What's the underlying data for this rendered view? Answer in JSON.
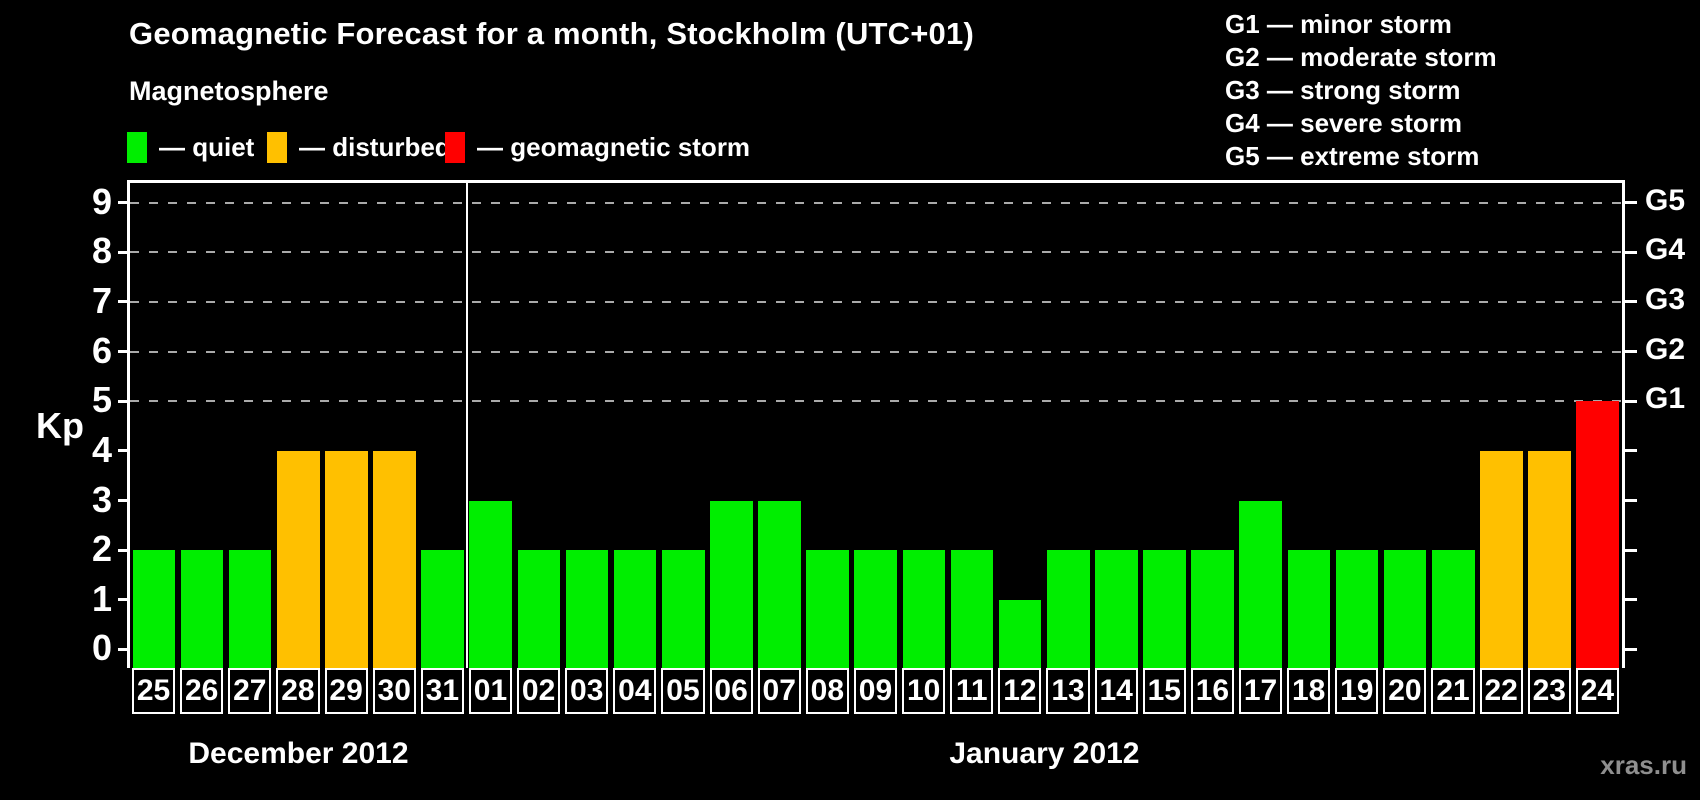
{
  "header": {
    "title": "Geomagnetic Forecast for a month, Stockholm (UTC+01)"
  },
  "legend": {
    "title": "Magnetosphere",
    "items": [
      {
        "key": "quiet",
        "label": "— quiet"
      },
      {
        "key": "disturbed",
        "label": "— disturbed"
      },
      {
        "key": "storm",
        "label": "— geomagnetic storm"
      }
    ]
  },
  "g_legend": {
    "items": [
      "G1 — minor storm",
      "G2 — moderate storm",
      "G3 — strong storm",
      "G4 — severe storm",
      "G5 — extreme storm"
    ]
  },
  "axes": {
    "y_label": "Kp"
  },
  "footer": {
    "watermark": "xras.ru"
  },
  "colors": {
    "quiet": "#00ee00",
    "disturbed": "#ffc000",
    "storm": "#ff0000",
    "background": "#000000",
    "grid": "#aaaaaa",
    "axis": "#ffffff",
    "watermark": "#8f8f8f"
  },
  "chart_data": {
    "type": "bar",
    "title": "Geomagnetic Forecast for a month, Stockholm (UTC+01)",
    "xlabel": "",
    "ylabel": "Kp",
    "ylim": [
      0,
      9
    ],
    "grid_levels": [
      5,
      6,
      7,
      8,
      9
    ],
    "y_ticks": [
      0,
      1,
      2,
      3,
      4,
      5,
      6,
      7,
      8,
      9
    ],
    "right_axis_labels": [
      {
        "kp": 5,
        "label": "G1"
      },
      {
        "kp": 6,
        "label": "G2"
      },
      {
        "kp": 7,
        "label": "G3"
      },
      {
        "kp": 8,
        "label": "G4"
      },
      {
        "kp": 9,
        "label": "G5"
      }
    ],
    "sections": [
      {
        "month": "December 2012",
        "days": 7
      },
      {
        "month": "January 2012",
        "days": 24
      }
    ],
    "categories": [
      "25",
      "26",
      "27",
      "28",
      "29",
      "30",
      "31",
      "01",
      "02",
      "03",
      "04",
      "05",
      "06",
      "07",
      "08",
      "09",
      "10",
      "11",
      "12",
      "13",
      "14",
      "15",
      "16",
      "17",
      "18",
      "19",
      "20",
      "21",
      "22",
      "23",
      "24"
    ],
    "values": [
      2,
      2,
      2,
      4,
      4,
      4,
      2,
      3,
      2,
      2,
      2,
      2,
      3,
      3,
      2,
      2,
      2,
      2,
      1,
      2,
      2,
      2,
      2,
      3,
      2,
      2,
      2,
      2,
      4,
      4,
      5
    ],
    "statuses": [
      "quiet",
      "quiet",
      "quiet",
      "disturbed",
      "disturbed",
      "disturbed",
      "quiet",
      "quiet",
      "quiet",
      "quiet",
      "quiet",
      "quiet",
      "quiet",
      "quiet",
      "quiet",
      "quiet",
      "quiet",
      "quiet",
      "quiet",
      "quiet",
      "quiet",
      "quiet",
      "quiet",
      "quiet",
      "quiet",
      "quiet",
      "quiet",
      "quiet",
      "disturbed",
      "disturbed",
      "storm"
    ]
  }
}
